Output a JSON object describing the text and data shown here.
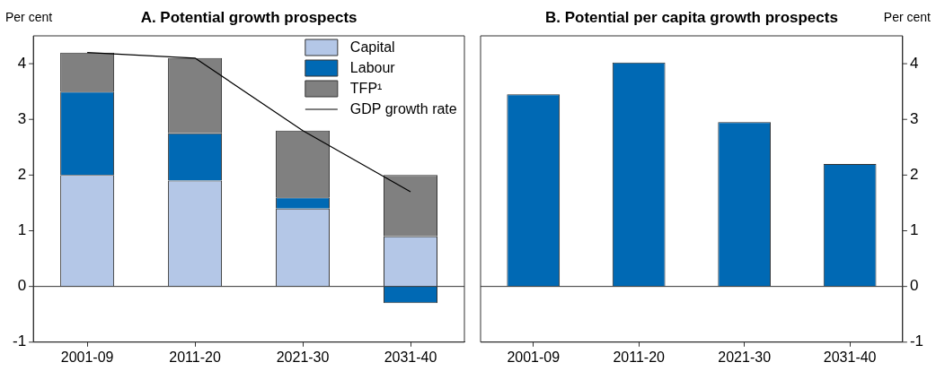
{
  "chart_data": [
    {
      "type": "bar",
      "title": "A. Potential growth prospects",
      "ylabel": "Per cent",
      "categories": [
        "2001-09",
        "2011-20",
        "2021-30",
        "2031-40"
      ],
      "stacked": true,
      "series": [
        {
          "name": "Capital",
          "color": "#b4c7e7",
          "values": [
            2.0,
            1.9,
            1.4,
            0.9
          ]
        },
        {
          "name": "Labour",
          "color": "#0069b4",
          "values": [
            1.5,
            0.85,
            0.2,
            -0.3
          ]
        },
        {
          "name": "TFP¹",
          "color": "#808080",
          "values": [
            0.7,
            1.35,
            1.2,
            1.1
          ]
        },
        {
          "name": "GDP growth rate",
          "type": "line",
          "color": "#000000",
          "values": [
            4.2,
            4.1,
            2.8,
            1.7
          ]
        }
      ],
      "ylim": [
        -1,
        4.5
      ],
      "yticks": [
        -1,
        0,
        1,
        2,
        3,
        4
      ],
      "ref_lines": [
        {
          "axis": "y",
          "value": 0
        }
      ],
      "grid": false,
      "legend": "top right",
      "marker": "none"
    },
    {
      "type": "bar",
      "title": "B. Potential per capita growth prospects",
      "y2label": "Per cent",
      "categories": [
        "2001-09",
        "2011-20",
        "2021-30",
        "2031-40"
      ],
      "series": [
        {
          "color": "#0069b4",
          "axis": "y2",
          "values": [
            3.45,
            4.02,
            2.95,
            2.2
          ]
        }
      ],
      "y2lim": [
        -1,
        4.5
      ],
      "y2ticks": [
        -1,
        0,
        1,
        2,
        3,
        4
      ],
      "ref_lines": [
        {
          "axis": "y2",
          "value": 0
        }
      ],
      "grid": false,
      "legend": false
    }
  ]
}
